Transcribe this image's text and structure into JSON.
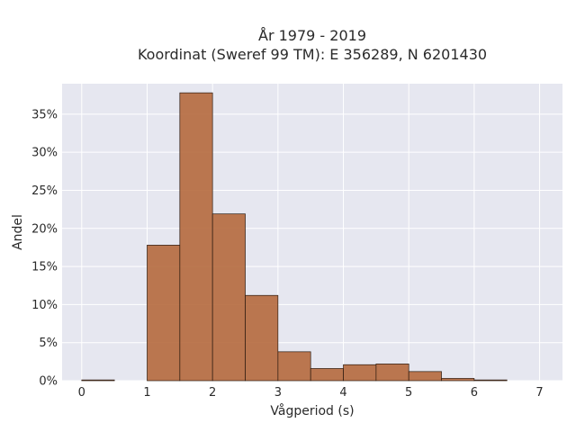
{
  "chart_data": {
    "type": "bar",
    "title_lines": [
      "År 1979 - 2019",
      "Koordinat (Sweref 99 TM): E 356289, N 6201430"
    ],
    "xlabel": "Vågperiod (s)",
    "ylabel": "Andel",
    "xlim": [
      -0.3,
      7.35
    ],
    "ylim": [
      0,
      39
    ],
    "x_ticks": [
      0,
      1,
      2,
      3,
      4,
      5,
      6,
      7
    ],
    "x_tick_labels": [
      "0",
      "1",
      "2",
      "3",
      "4",
      "5",
      "6",
      "7"
    ],
    "y_ticks": [
      0,
      5,
      10,
      15,
      20,
      25,
      30,
      35
    ],
    "y_tick_labels": [
      "0%",
      "5%",
      "10%",
      "15%",
      "20%",
      "25%",
      "30%",
      "35%"
    ],
    "bin_width": 0.5,
    "bins": [
      {
        "start": 0.0,
        "value": 0.1
      },
      {
        "start": 0.5,
        "value": 0.0
      },
      {
        "start": 1.0,
        "value": 17.8
      },
      {
        "start": 1.5,
        "value": 37.8
      },
      {
        "start": 2.0,
        "value": 21.9
      },
      {
        "start": 2.5,
        "value": 11.2
      },
      {
        "start": 3.0,
        "value": 3.8
      },
      {
        "start": 3.5,
        "value": 1.6
      },
      {
        "start": 4.0,
        "value": 2.1
      },
      {
        "start": 4.5,
        "value": 2.2
      },
      {
        "start": 5.0,
        "value": 1.2
      },
      {
        "start": 5.5,
        "value": 0.3
      },
      {
        "start": 6.0,
        "value": 0.1
      }
    ],
    "grid": true,
    "colors": {
      "bar": "#b5693d",
      "edge": "#2b1a10",
      "plot_background": "#e6e7f0",
      "grid": "#ffffff"
    }
  }
}
